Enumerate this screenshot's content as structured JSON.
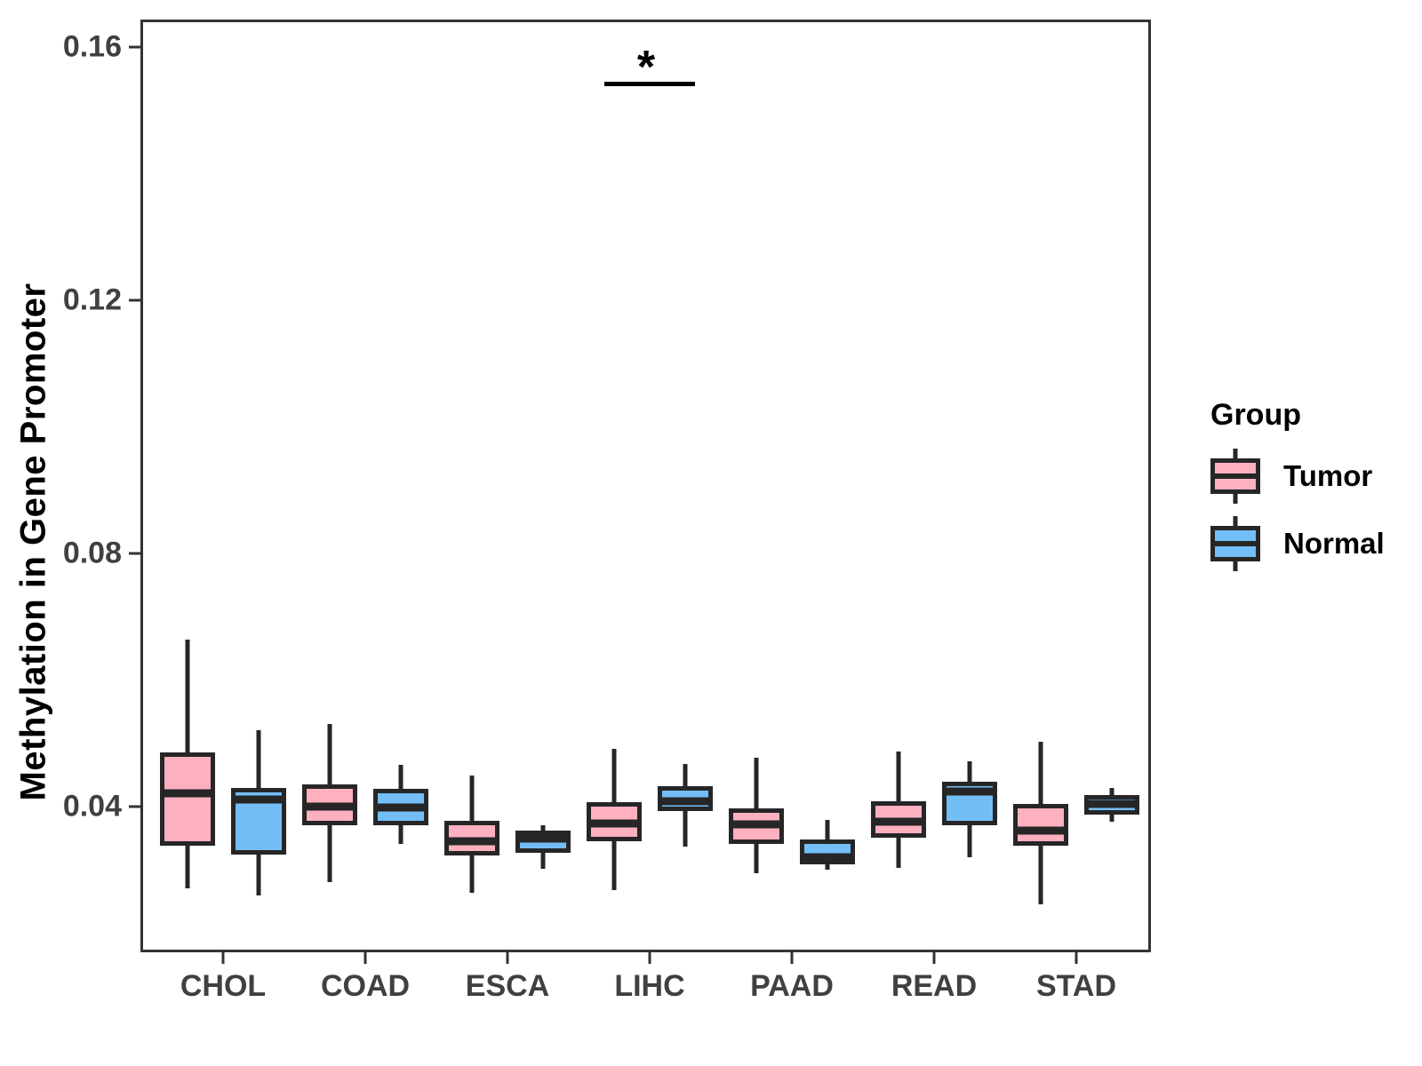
{
  "y_axis": {
    "ticks": [
      {
        "label": "0.04",
        "value": 0.04
      },
      {
        "label": "0.08",
        "value": 0.08
      },
      {
        "label": "0.12",
        "value": 0.12
      },
      {
        "label": "0.16",
        "value": 0.16
      }
    ]
  },
  "legend": {
    "title": "Group",
    "items": [
      {
        "label": "Tumor",
        "color": "#FCB0C0"
      },
      {
        "label": "Normal",
        "color": "#74BEF7"
      }
    ]
  },
  "significance": {
    "category": "LIHC",
    "label": "*",
    "bar_y_value": 0.1545
  },
  "chart_data": {
    "type": "boxplot",
    "title": "",
    "xlabel": "",
    "ylabel": "Methylation in Gene Promoter",
    "ylim": [
      0.017,
      0.1643
    ],
    "grid": false,
    "legend_position": "right",
    "categories": [
      "CHOL",
      "COAD",
      "ESCA",
      "LIHC",
      "PAAD",
      "READ",
      "STAD"
    ],
    "series": [
      {
        "name": "Tumor",
        "color": "#FCB0C0",
        "boxes": [
          {
            "whisker_low": 0.0271,
            "q1": 0.0338,
            "median": 0.0421,
            "q3": 0.0486,
            "whisker_high": 0.0664
          },
          {
            "whisker_low": 0.0281,
            "q1": 0.037,
            "median": 0.04,
            "q3": 0.0435,
            "whisker_high": 0.0531
          },
          {
            "whisker_low": 0.0264,
            "q1": 0.0323,
            "median": 0.0345,
            "q3": 0.0378,
            "whisker_high": 0.0449
          },
          {
            "whisker_low": 0.0268,
            "q1": 0.0345,
            "median": 0.0373,
            "q3": 0.0407,
            "whisker_high": 0.0491
          },
          {
            "whisker_low": 0.0295,
            "q1": 0.0341,
            "median": 0.0372,
            "q3": 0.0397,
            "whisker_high": 0.0477
          },
          {
            "whisker_low": 0.0303,
            "q1": 0.0351,
            "median": 0.0376,
            "q3": 0.0408,
            "whisker_high": 0.0487
          },
          {
            "whisker_low": 0.0246,
            "q1": 0.0338,
            "median": 0.0362,
            "q3": 0.0404,
            "whisker_high": 0.0502
          }
        ]
      },
      {
        "name": "Normal",
        "color": "#74BEF7",
        "boxes": [
          {
            "whisker_low": 0.026,
            "q1": 0.0324,
            "median": 0.0411,
            "q3": 0.0429,
            "whisker_high": 0.0521
          },
          {
            "whisker_low": 0.0341,
            "q1": 0.037,
            "median": 0.0399,
            "q3": 0.0428,
            "whisker_high": 0.0466
          },
          {
            "whisker_low": 0.0302,
            "q1": 0.0327,
            "median": 0.0349,
            "q3": 0.0362,
            "whisker_high": 0.037
          },
          {
            "whisker_low": 0.0337,
            "q1": 0.0393,
            "median": 0.0408,
            "q3": 0.0432,
            "whisker_high": 0.0467
          },
          {
            "whisker_low": 0.03,
            "q1": 0.0309,
            "median": 0.032,
            "q3": 0.0348,
            "whisker_high": 0.0379
          },
          {
            "whisker_low": 0.032,
            "q1": 0.0371,
            "median": 0.0424,
            "q3": 0.0439,
            "whisker_high": 0.0472
          },
          {
            "whisker_low": 0.0376,
            "q1": 0.0387,
            "median": 0.0404,
            "q3": 0.0418,
            "whisker_high": 0.0429
          }
        ]
      }
    ]
  }
}
